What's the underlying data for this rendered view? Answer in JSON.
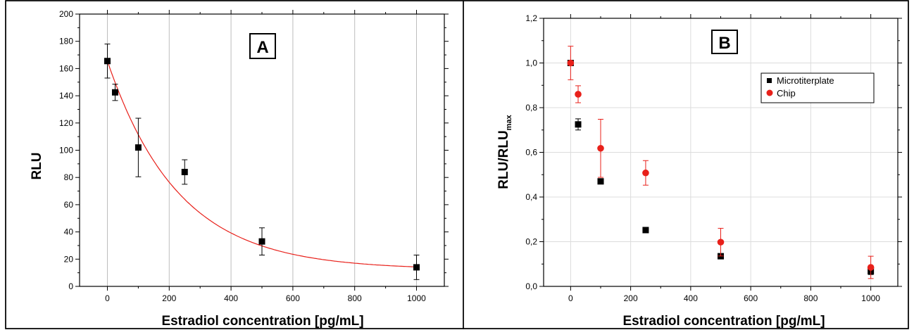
{
  "chart_data": [
    {
      "type": "scatter",
      "panel_label": "A",
      "xlabel": "Estradiol concentration [pg/mL]",
      "ylabel": "RLU",
      "xlim": [
        -90,
        1090
      ],
      "ylim": [
        0,
        200
      ],
      "x_ticks": [
        "0",
        "200",
        "400",
        "600",
        "800",
        "1000"
      ],
      "y_ticks": [
        "0",
        "20",
        "40",
        "60",
        "80",
        "100",
        "120",
        "140",
        "160",
        "180",
        "200"
      ],
      "grid": "vertical",
      "series": [
        {
          "marker": "square",
          "color": "#000000",
          "x": [
            0,
            25,
            100,
            250,
            500,
            1000
          ],
          "y": [
            165.5,
            142.5,
            102,
            84,
            33,
            14
          ],
          "y_error": [
            12.5,
            6,
            21.5,
            9,
            10,
            9
          ]
        }
      ],
      "fit": {
        "type": "exponential-decay",
        "color": "#e8201a",
        "y0": 12.3,
        "amplitude": 153.2,
        "decay": 230,
        "x_range": [
          0,
          1000
        ]
      }
    },
    {
      "type": "scatter",
      "panel_label": "B",
      "xlabel": "Estradiol concentration [pg/mL]",
      "ylabel_main": "RLU/RLU",
      "ylabel_sub": "max",
      "xlim": [
        -90,
        1090
      ],
      "ylim": [
        0,
        1.2
      ],
      "x_ticks": [
        "0",
        "200",
        "400",
        "600",
        "800",
        "1000"
      ],
      "y_ticks": [
        "0,0",
        "0,2",
        "0,4",
        "0,6",
        "0,8",
        "1,0",
        "1,2"
      ],
      "grid": "both",
      "legend_position": "top-right",
      "series": [
        {
          "name": "Microtiterplate",
          "marker": "square",
          "color": "#000000",
          "x": [
            0,
            25,
            100,
            250,
            500,
            1000
          ],
          "y": [
            1.0,
            0.725,
            0.47,
            0.252,
            0.135,
            0.068
          ],
          "y_error": [
            0,
            0.025,
            0,
            0,
            0,
            0.015
          ]
        },
        {
          "name": "Chip",
          "marker": "circle",
          "color": "#e8201a",
          "x": [
            0,
            25,
            100,
            250,
            500,
            1000
          ],
          "y": [
            1.0,
            0.86,
            0.618,
            0.508,
            0.198,
            0.085
          ],
          "y_error": [
            0.075,
            0.038,
            0.13,
            0.055,
            0.062,
            0.05
          ]
        }
      ]
    }
  ]
}
